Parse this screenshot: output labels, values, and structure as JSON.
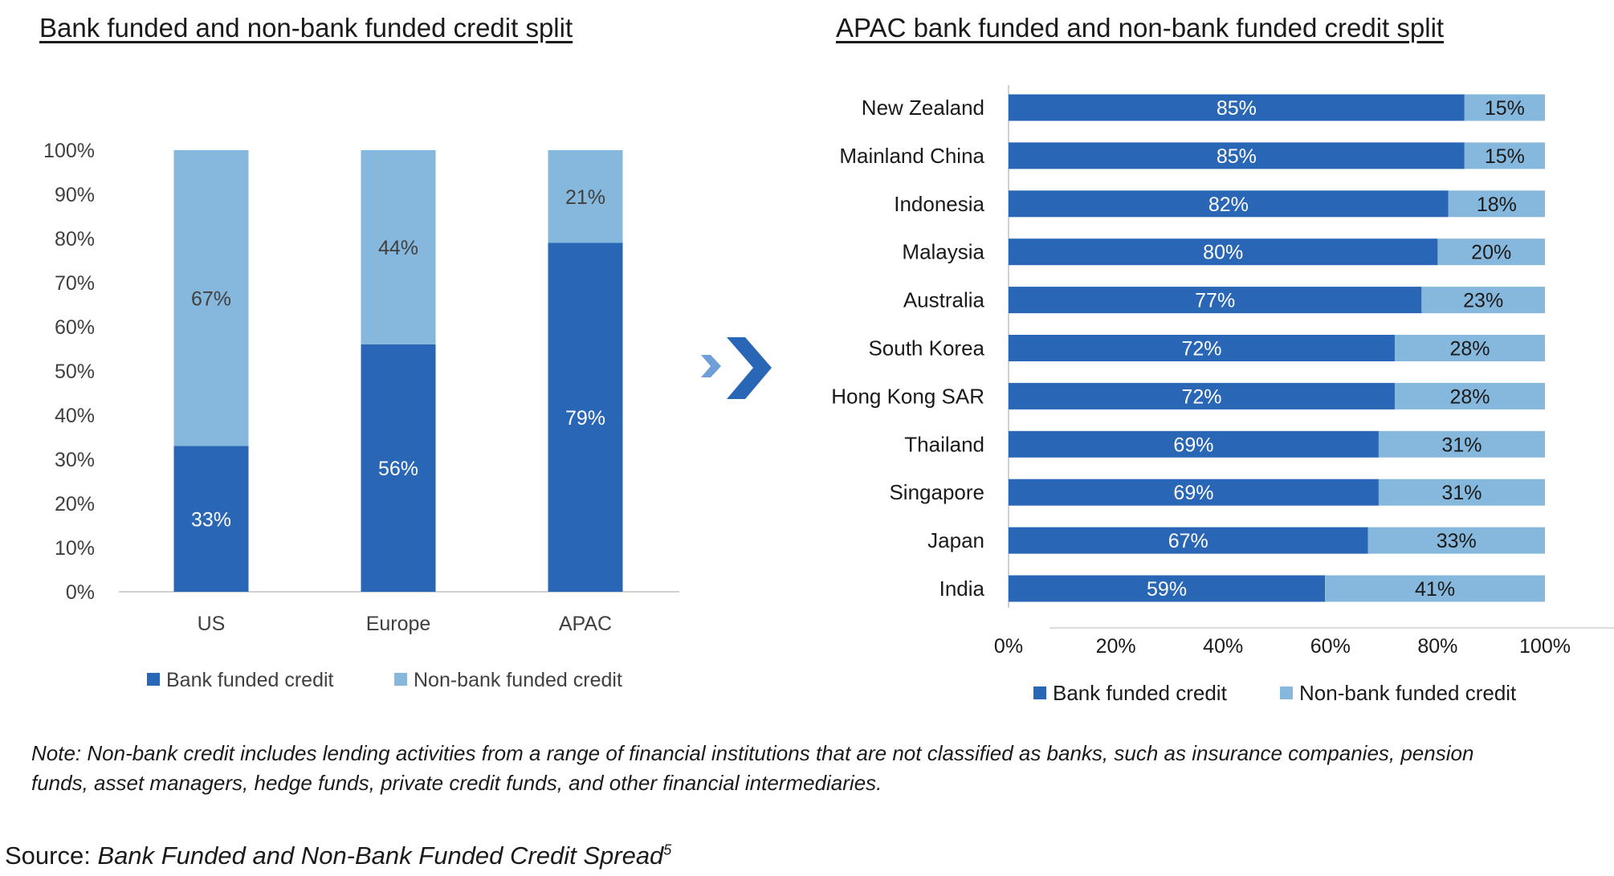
{
  "colors": {
    "bank": "#2966b5",
    "nonbank": "#85b8dc",
    "axis": "#d0d0d0"
  },
  "chart_data": [
    {
      "type": "bar",
      "stacked": true,
      "orientation": "vertical",
      "title": "Bank funded and non-bank funded credit split",
      "categories": [
        "US",
        "Europe",
        "APAC"
      ],
      "series": [
        {
          "name": "Bank funded credit",
          "values": [
            33,
            56,
            79
          ],
          "labels": [
            "33%",
            "56%",
            "79%"
          ]
        },
        {
          "name": "Non-bank funded credit",
          "values": [
            67,
            44,
            21
          ],
          "labels": [
            "67%",
            "44%",
            "21%"
          ]
        }
      ],
      "ylim": [
        0,
        100
      ],
      "yticks": [
        "0%",
        "10%",
        "20%",
        "30%",
        "40%",
        "50%",
        "60%",
        "70%",
        "80%",
        "90%",
        "100%"
      ],
      "legend": "bottom"
    },
    {
      "type": "bar",
      "stacked": true,
      "orientation": "horizontal",
      "title": "APAC bank funded and non-bank funded credit split",
      "categories": [
        "New Zealand",
        "Mainland China",
        "Indonesia",
        "Malaysia",
        "Australia",
        "South Korea",
        "Hong Kong SAR",
        "Thailand",
        "Singapore",
        "Japan",
        "India"
      ],
      "series": [
        {
          "name": "Bank funded credit",
          "values": [
            85,
            85,
            82,
            80,
            77,
            72,
            72,
            69,
            69,
            67,
            59
          ],
          "labels": [
            "85%",
            "85%",
            "82%",
            "80%",
            "77%",
            "72%",
            "72%",
            "69%",
            "69%",
            "67%",
            "59%"
          ]
        },
        {
          "name": "Non-bank funded credit",
          "values": [
            15,
            15,
            18,
            20,
            23,
            28,
            28,
            31,
            31,
            33,
            41
          ],
          "labels": [
            "15%",
            "15%",
            "18%",
            "20%",
            "23%",
            "28%",
            "28%",
            "31%",
            "31%",
            "33%",
            "41%"
          ]
        }
      ],
      "xlim": [
        0,
        100
      ],
      "xticks": [
        "0%",
        "20%",
        "40%",
        "60%",
        "80%",
        "100%"
      ],
      "legend": "bottom"
    }
  ],
  "arrow_icon": "double-chevron-right",
  "note": "Note: Non-bank credit includes lending activities from a range of financial institutions that are not classified as banks, such as insurance companies, pension funds, asset managers, hedge funds, private credit funds, and other financial intermediaries.",
  "source": {
    "prefix": "Source: ",
    "title": "Bank Funded and Non-Bank Funded Credit Spread",
    "footnote": "5"
  }
}
